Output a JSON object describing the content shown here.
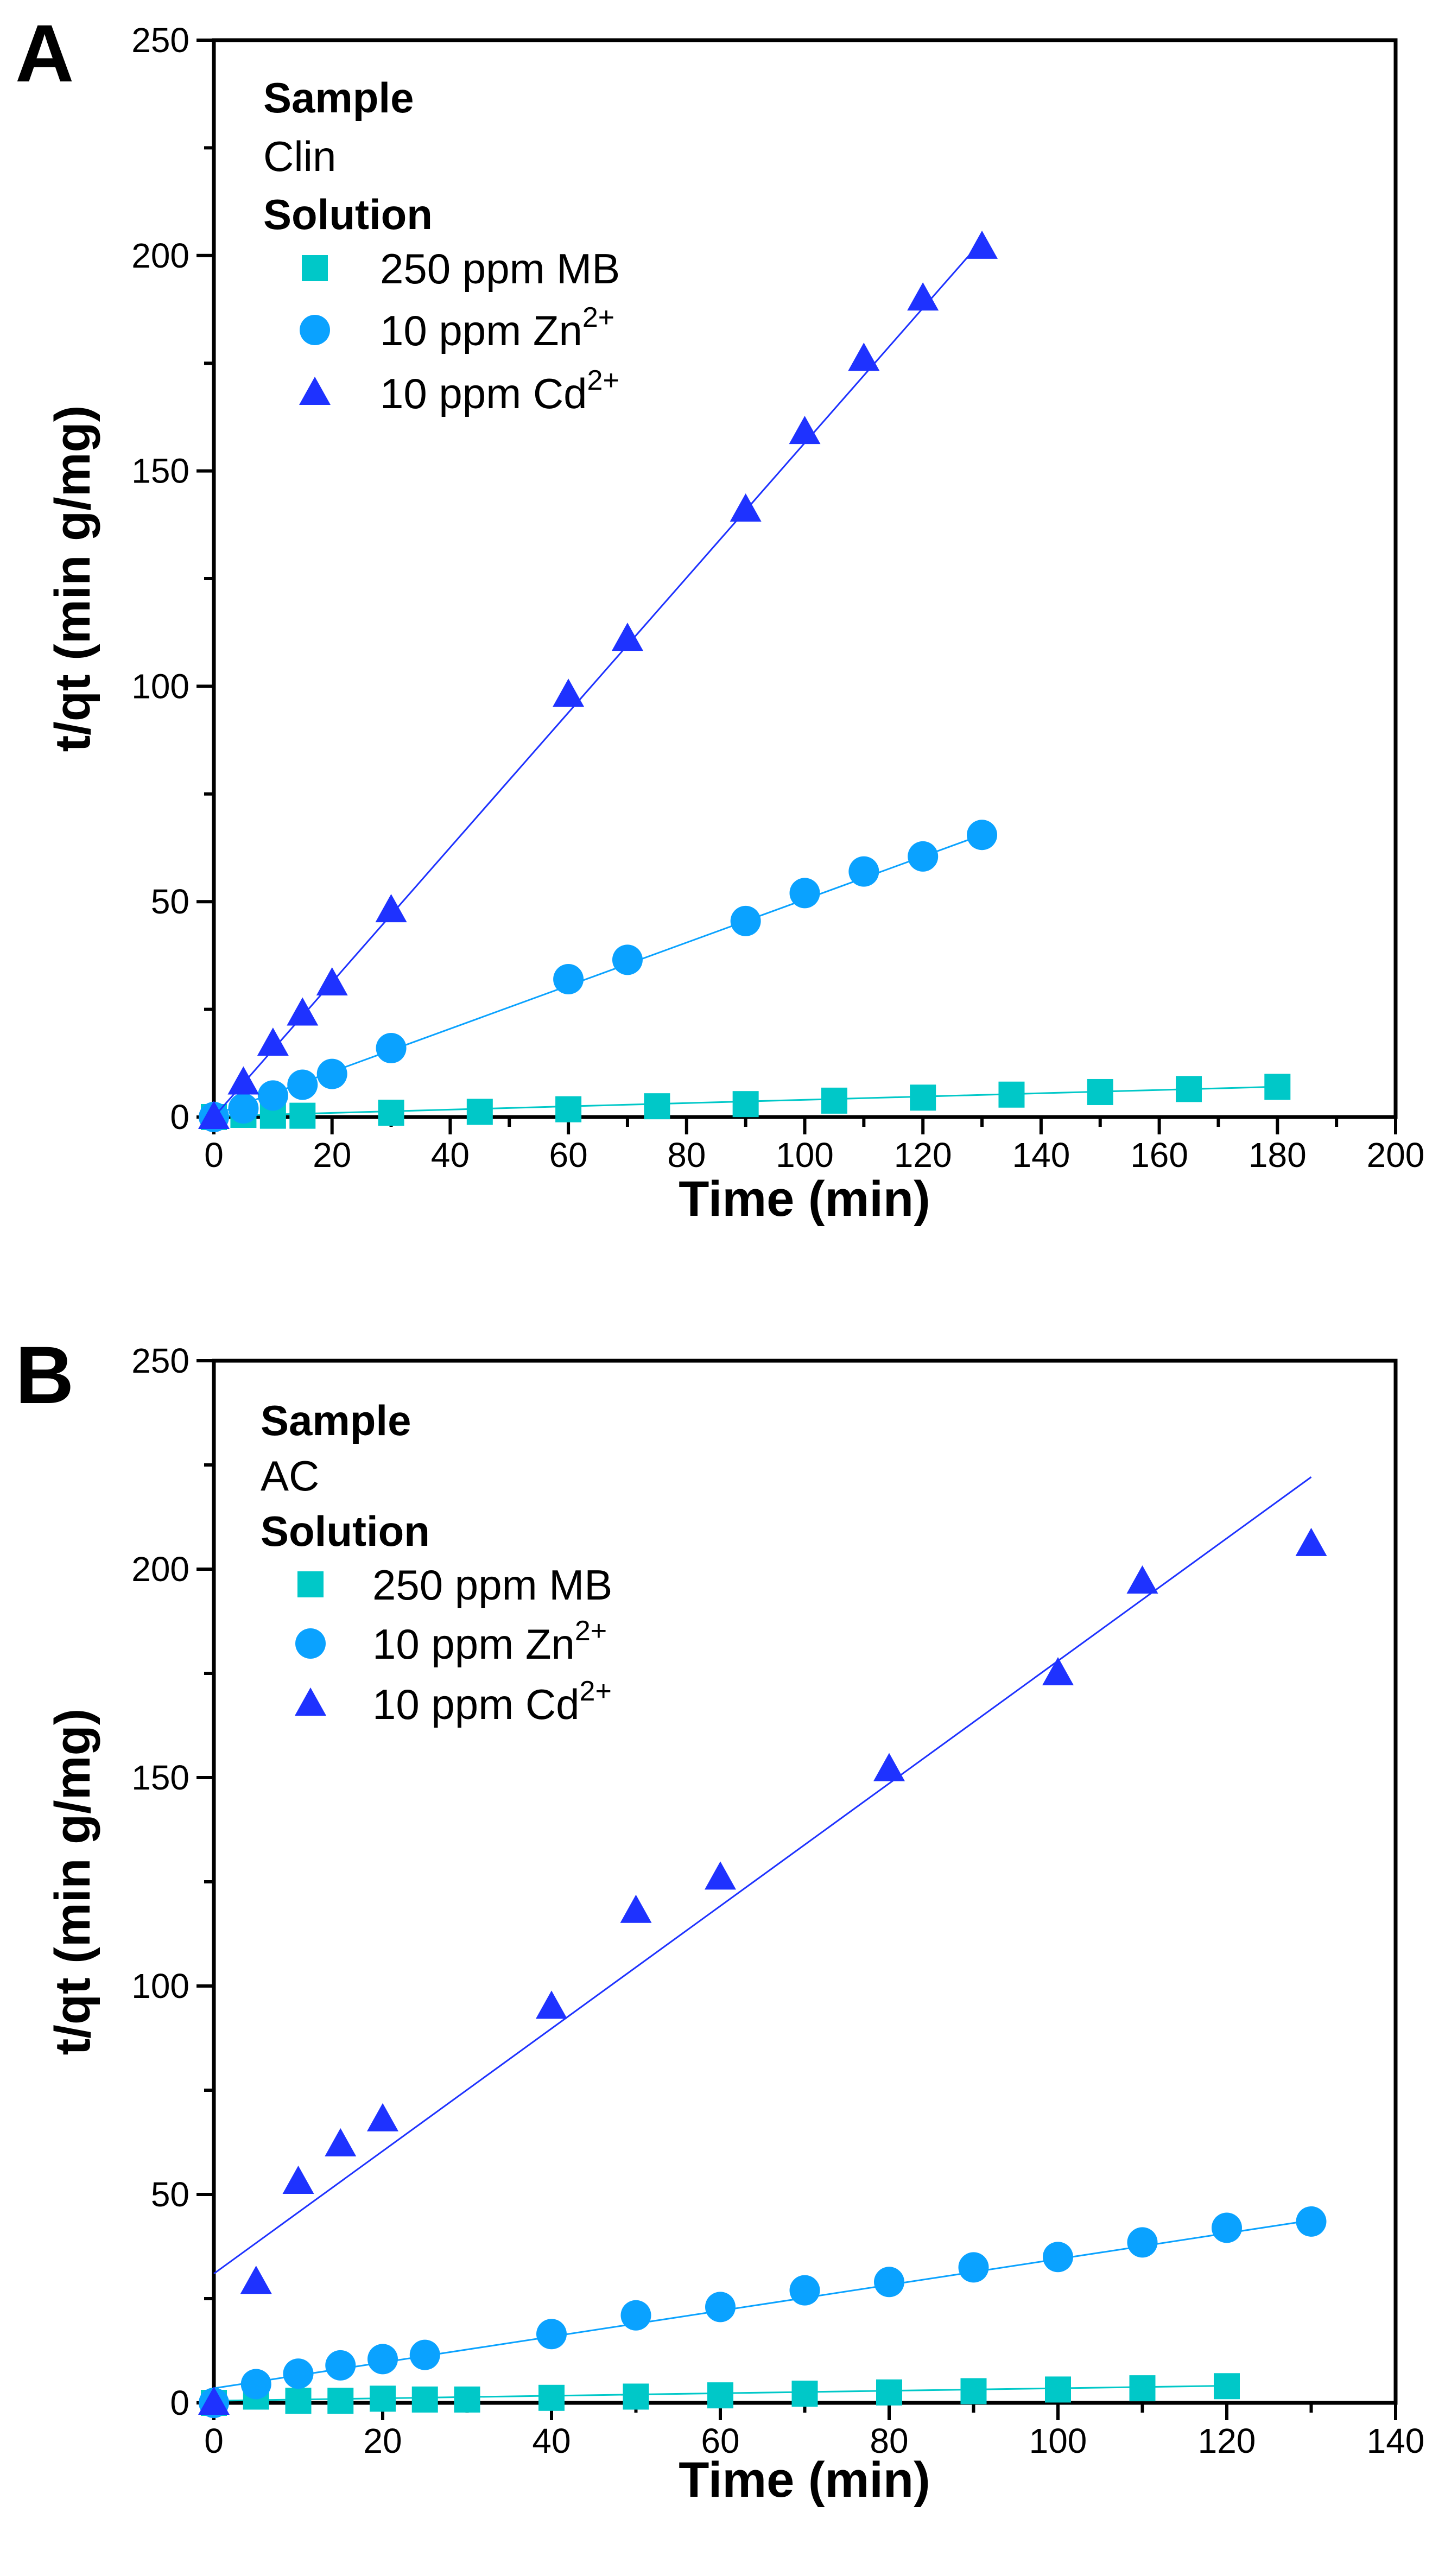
{
  "chart_data": [
    {
      "type": "scatter",
      "panel": "A",
      "xlabel": "Time (min)",
      "ylabel": "t/qt (min g/mg)",
      "xlim": [
        0,
        200
      ],
      "ylim": [
        0,
        250
      ],
      "xticks": [
        0,
        20,
        40,
        60,
        80,
        100,
        120,
        140,
        160,
        180,
        200
      ],
      "yticks": [
        0,
        50,
        100,
        150,
        200,
        250
      ],
      "legend": {
        "placement": "top-left",
        "sample_heading": "Sample",
        "sample": "Clin",
        "solution_heading": "Solution"
      },
      "series": [
        {
          "name": "250 ppm MB",
          "label": "250 ppm MB",
          "sup": "",
          "marker": "square",
          "color": "#00C8C8",
          "x": [
            0,
            5,
            10,
            15,
            30,
            45,
            60,
            75,
            90,
            105,
            120,
            135,
            150,
            165,
            180
          ],
          "y": [
            0,
            0.5,
            0.3,
            0.3,
            1.0,
            1.2,
            1.8,
            2.5,
            3.0,
            3.8,
            4.5,
            5.2,
            5.8,
            6.5,
            7.0
          ],
          "fit": {
            "slope": 0.038,
            "intercept": 0.2,
            "x_range": [
              0,
              180
            ]
          }
        },
        {
          "name": "10 ppm Zn2+",
          "label": "10 ppm Zn",
          "sup": "2+",
          "marker": "circle",
          "color": "#0AA2FF",
          "x": [
            0,
            5,
            10,
            15,
            20,
            30,
            60,
            70,
            90,
            100,
            110,
            120,
            130
          ],
          "y": [
            0,
            2,
            5,
            7.5,
            10,
            16,
            32,
            36.5,
            45.5,
            52,
            57,
            60.5,
            65.5
          ],
          "fit": {
            "slope": 0.5,
            "intercept": 0.5,
            "x_range": [
              0,
              130
            ]
          }
        },
        {
          "name": "10 ppm Cd2+",
          "label": "10 ppm Cd",
          "sup": "2+",
          "marker": "triangle",
          "color": "#1E32FF",
          "x": [
            0,
            5,
            10,
            15,
            20,
            30,
            60,
            70,
            90,
            100,
            110,
            120,
            130
          ],
          "y": [
            0,
            8,
            17,
            24,
            31,
            48,
            98,
            111,
            141,
            159,
            176,
            190,
            202
          ],
          "fit": {
            "slope": 1.565,
            "intercept": 0,
            "x_range": [
              0,
              130
            ]
          }
        }
      ]
    },
    {
      "type": "scatter",
      "panel": "B",
      "xlabel": "Time (min)",
      "ylabel": "t/qt (min g/mg)",
      "xlim": [
        0,
        140
      ],
      "ylim": [
        0,
        250
      ],
      "xticks": [
        0,
        20,
        40,
        60,
        80,
        100,
        120,
        140
      ],
      "yticks": [
        0,
        50,
        100,
        150,
        200,
        250
      ],
      "legend": {
        "placement": "top-left",
        "sample_heading": "Sample",
        "sample": "AC",
        "solution_heading": "Solution"
      },
      "series": [
        {
          "name": "250 ppm MB",
          "label": "250 ppm MB",
          "sup": "",
          "marker": "square",
          "color": "#00C8C8",
          "x": [
            0,
            5,
            10,
            15,
            20,
            25,
            30,
            40,
            50,
            60,
            70,
            80,
            90,
            100,
            110,
            120
          ],
          "y": [
            0,
            1.5,
            0.5,
            0.5,
            1.0,
            0.8,
            0.8,
            1.2,
            1.5,
            1.8,
            2.2,
            2.5,
            2.8,
            3.2,
            3.5,
            4.0
          ],
          "fit": {
            "slope": 0.03,
            "intercept": 0.5,
            "x_range": [
              0,
              120
            ]
          }
        },
        {
          "name": "10 ppm Zn2+",
          "label": "10 ppm Zn",
          "sup": "2+",
          "marker": "circle",
          "color": "#0AA2FF",
          "x": [
            0,
            5,
            10,
            15,
            20,
            25,
            40,
            50,
            60,
            70,
            80,
            90,
            100,
            110,
            120,
            130
          ],
          "y": [
            0,
            4.5,
            7,
            9,
            10.5,
            11.5,
            16.5,
            21,
            23,
            27,
            29,
            32.5,
            35,
            38.5,
            42,
            43.5
          ],
          "fit": {
            "slope": 0.31,
            "intercept": 3.5,
            "x_range": [
              0,
              130
            ]
          }
        },
        {
          "name": "10 ppm Cd2+",
          "label": "10 ppm Cd",
          "sup": "2+",
          "marker": "triangle",
          "color": "#1E32FF",
          "x": [
            0,
            5,
            10,
            15,
            20,
            40,
            50,
            60,
            80,
            100,
            110,
            130
          ],
          "y": [
            0,
            29,
            53,
            62,
            68,
            95,
            118,
            126,
            152,
            175,
            197,
            206
          ],
          "fit": {
            "slope": 1.47,
            "intercept": 31,
            "x_range": [
              0,
              130
            ]
          }
        }
      ]
    }
  ]
}
